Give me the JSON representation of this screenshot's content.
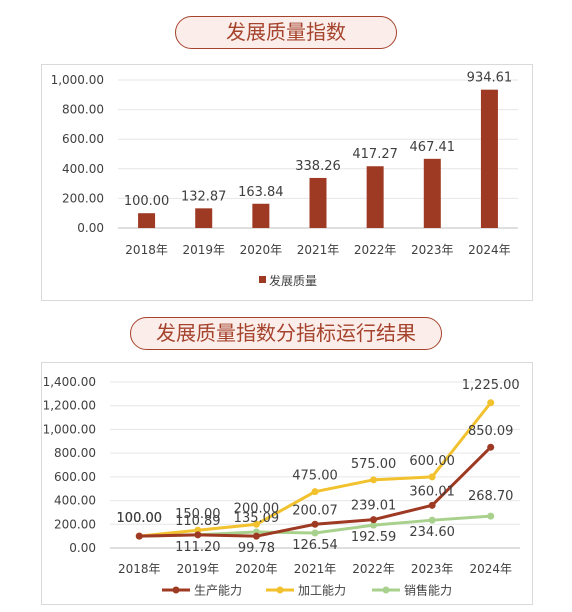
{
  "titles": {
    "chart1": "发展质量指数",
    "chart2": "发展质量指数分指标运行结果"
  },
  "colors": {
    "bar": "#9e3a23",
    "production": "#9e3a23",
    "processing": "#f2c12e",
    "sales": "#a9d18e",
    "pill_border": "#a5432d",
    "grid": "#e6e6e6"
  },
  "chart_data": [
    {
      "type": "bar",
      "categories": [
        "2018年",
        "2019年",
        "2020年",
        "2021年",
        "2022年",
        "2023年",
        "2024年"
      ],
      "series": [
        {
          "name": "发展质量",
          "values": [
            100.0,
            132.87,
            163.84,
            338.26,
            417.27,
            467.41,
            934.61
          ]
        }
      ],
      "data_labels": [
        "100.00",
        "132.87",
        "163.84",
        "338.26",
        "417.27",
        "467.41",
        "934.61"
      ],
      "y_ticks": [
        "0.00",
        "200.00",
        "400.00",
        "600.00",
        "800.00",
        "1,000.00"
      ],
      "ylim": [
        0,
        1000
      ],
      "grid": true,
      "legend": "bottom"
    },
    {
      "type": "line",
      "categories": [
        "2018年",
        "2019年",
        "2020年",
        "2021年",
        "2022年",
        "2023年",
        "2024年"
      ],
      "series": [
        {
          "name": "生产能力",
          "values": [
            100.0,
            111.2,
            99.78,
            200.07,
            239.01,
            360.01,
            850.09
          ],
          "labels": [
            "100.00",
            "111.20",
            "99.78",
            "200.07",
            "239.01",
            "360.01",
            "850.09"
          ]
        },
        {
          "name": "加工能力",
          "values": [
            100.0,
            150.0,
            200.0,
            475.0,
            575.0,
            600.0,
            1225.0
          ],
          "labels": [
            "100.00",
            "150.00",
            "200.00",
            "475.00",
            "575.00",
            "600.00",
            "1,225.00"
          ]
        },
        {
          "name": "销售能力",
          "values": [
            100.0,
            110.89,
            135.09,
            126.54,
            192.59,
            234.6,
            268.7
          ],
          "labels": [
            "100.00",
            "110.89",
            "135.09",
            "126.54",
            "192.59",
            "234.60",
            "268.70"
          ]
        }
      ],
      "y_ticks": [
        "0.00",
        "200.00",
        "400.00",
        "600.00",
        "800.00",
        "1,000.00",
        "1,200.00",
        "1,400.00"
      ],
      "ylim": [
        0,
        1400
      ],
      "grid": true,
      "legend": "bottom"
    }
  ]
}
